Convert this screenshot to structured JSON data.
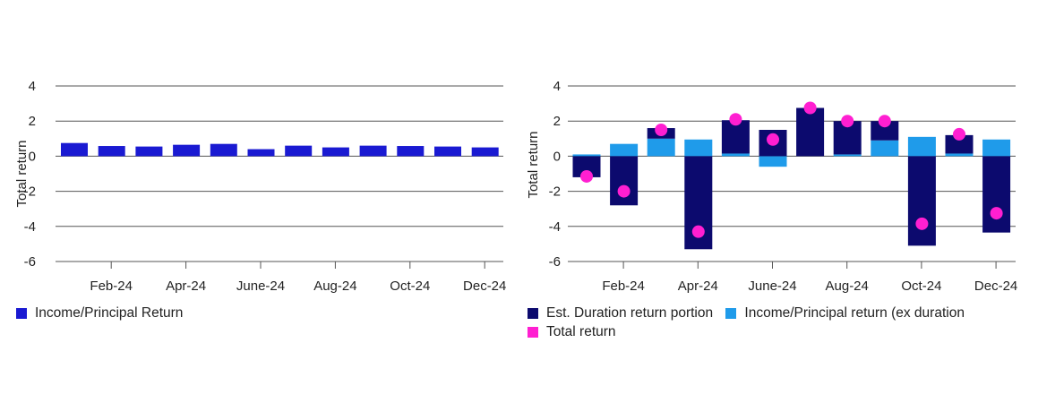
{
  "chart_data": [
    {
      "type": "bar",
      "ylabel": "Total return",
      "ylim": [
        -6,
        4
      ],
      "yticks": [
        4,
        2,
        0,
        -2,
        -4,
        -6
      ],
      "xtick_labels": [
        "Feb-24",
        "Apr-24",
        "June-24",
        "Aug-24",
        "Oct-24",
        "Dec-24"
      ],
      "categories": [
        "Jan-24",
        "Feb-24",
        "Mar-24",
        "Apr-24",
        "May-24",
        "Jun-24",
        "Jul-24",
        "Aug-24",
        "Sep-24",
        "Oct-24",
        "Nov-24",
        "Dec-24"
      ],
      "series": [
        {
          "name": "Income/Principal Return",
          "color": "#1a1ad2",
          "values": [
            0.75,
            0.58,
            0.55,
            0.65,
            0.7,
            0.4,
            0.6,
            0.5,
            0.6,
            0.58,
            0.55,
            0.5
          ]
        }
      ],
      "legend": [
        {
          "label": "Income/Principal Return",
          "color": "#1a1ad2"
        }
      ]
    },
    {
      "type": "bar",
      "stacked": true,
      "ylabel": "Total return",
      "ylim": [
        -6,
        4
      ],
      "yticks": [
        4,
        2,
        0,
        -2,
        -4,
        -6
      ],
      "xtick_labels": [
        "Feb-24",
        "Apr-24",
        "June-24",
        "Aug-24",
        "Oct-24",
        "Dec-24"
      ],
      "categories": [
        "Jan-24",
        "Feb-24",
        "Mar-24",
        "Apr-24",
        "May-24",
        "Jun-24",
        "Jul-24",
        "Aug-24",
        "Sep-24",
        "Oct-24",
        "Nov-24",
        "Dec-24"
      ],
      "series": [
        {
          "name": "Income/Principal return (ex duration",
          "color": "#1f9bea",
          "values": [
            0.1,
            0.7,
            1.0,
            0.95,
            0.15,
            -0.6,
            0.0,
            0.1,
            0.9,
            1.1,
            0.15,
            0.95
          ]
        },
        {
          "name": "Est. Duration return portion",
          "color": "#0c0a6e",
          "values": [
            -1.2,
            -2.8,
            0.6,
            -5.3,
            1.9,
            1.5,
            2.75,
            1.9,
            1.1,
            -5.1,
            1.05,
            -4.35
          ]
        },
        {
          "name": "Total return",
          "color": "#ff1fd1",
          "type": "point",
          "values": [
            -1.15,
            -2.0,
            1.5,
            -4.3,
            2.1,
            0.95,
            2.75,
            2.0,
            2.0,
            -3.85,
            1.25,
            -3.25
          ]
        }
      ],
      "legend": [
        {
          "label": "Est. Duration return portion",
          "color": "#0c0a6e"
        },
        {
          "label": "Income/Principal return (ex duration",
          "color": "#1f9bea"
        },
        {
          "label": "Total return",
          "color": "#ff1fd1"
        }
      ]
    }
  ]
}
